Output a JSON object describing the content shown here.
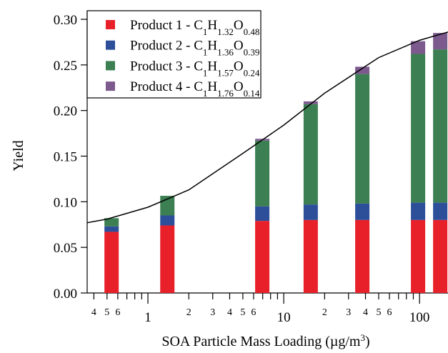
{
  "chart_data": {
    "type": "stacked-bar-log",
    "y_label": "Yield",
    "x_label": "SOA Particle Mass Loading (µg/m3)",
    "x_log": true,
    "xlim": [
      0.357,
      162
    ],
    "ylim": [
      0,
      0.3
    ],
    "yticks": [
      {
        "value": 0,
        "label": "0.00"
      },
      {
        "value": 0.05,
        "label": "0.05"
      },
      {
        "value": 0.1,
        "label": "0.10"
      },
      {
        "value": 0.15,
        "label": "0.15"
      },
      {
        "value": 0.2,
        "label": "0.20"
      },
      {
        "value": 0.25,
        "label": "0.25"
      },
      {
        "value": 0.3,
        "label": "0.30"
      }
    ],
    "xticks": [
      {
        "value": 0.4,
        "label": "4"
      },
      {
        "value": 0.5,
        "label": "5"
      },
      {
        "value": 0.6,
        "label": "6"
      },
      1,
      {
        "value": 2,
        "label": "2"
      },
      {
        "value": 3,
        "label": "3"
      },
      {
        "value": 4,
        "label": "4"
      },
      {
        "value": 5,
        "label": "5"
      },
      {
        "value": 6,
        "label": "6"
      },
      10,
      {
        "value": 20,
        "label": "2"
      },
      {
        "value": 30,
        "label": "3"
      },
      {
        "value": 40,
        "label": "4"
      },
      {
        "value": 50,
        "label": "5"
      },
      {
        "value": 60,
        "label": "6"
      },
      100
    ],
    "xminorticks": [
      0.7,
      0.8,
      0.9,
      7,
      8,
      9,
      70,
      80,
      90
    ],
    "x": [
      0.54,
      1.39,
      6.95,
      15.8,
      37.9,
      97.5,
      142
    ],
    "series": [
      {
        "name": "Product 1 - C1H1.32O0.48",
        "color": "#e8202a",
        "values": [
          0.067,
          0.074,
          0.079,
          0.08,
          0.08,
          0.08,
          0.08
        ]
      },
      {
        "name": "Product 2 - C1H1.36O0.39",
        "color": "#2d4f9a",
        "values": [
          0.006,
          0.011,
          0.016,
          0.017,
          0.018,
          0.019,
          0.019
        ]
      },
      {
        "name": "Product 3 - C1H1.57O0.24",
        "color": "#3c7f52",
        "values": [
          0.009,
          0.0215,
          0.072,
          0.11,
          0.142,
          0.163,
          0.168
        ]
      },
      {
        "name": "Product 4 - C1H1.76O0.14",
        "color": "#7d5a8e",
        "values": [
          0.0,
          0.0,
          0.002,
          0.003,
          0.008,
          0.014,
          0.018
        ]
      }
    ],
    "fit": {
      "color": "#000000",
      "x": [
        0.357,
        0.5,
        1,
        2,
        5,
        10,
        20,
        50,
        100,
        162
      ],
      "values": [
        0.077,
        0.081,
        0.094,
        0.113,
        0.153,
        0.184,
        0.219,
        0.258,
        0.277,
        0.286
      ]
    },
    "legend": "top-left"
  }
}
